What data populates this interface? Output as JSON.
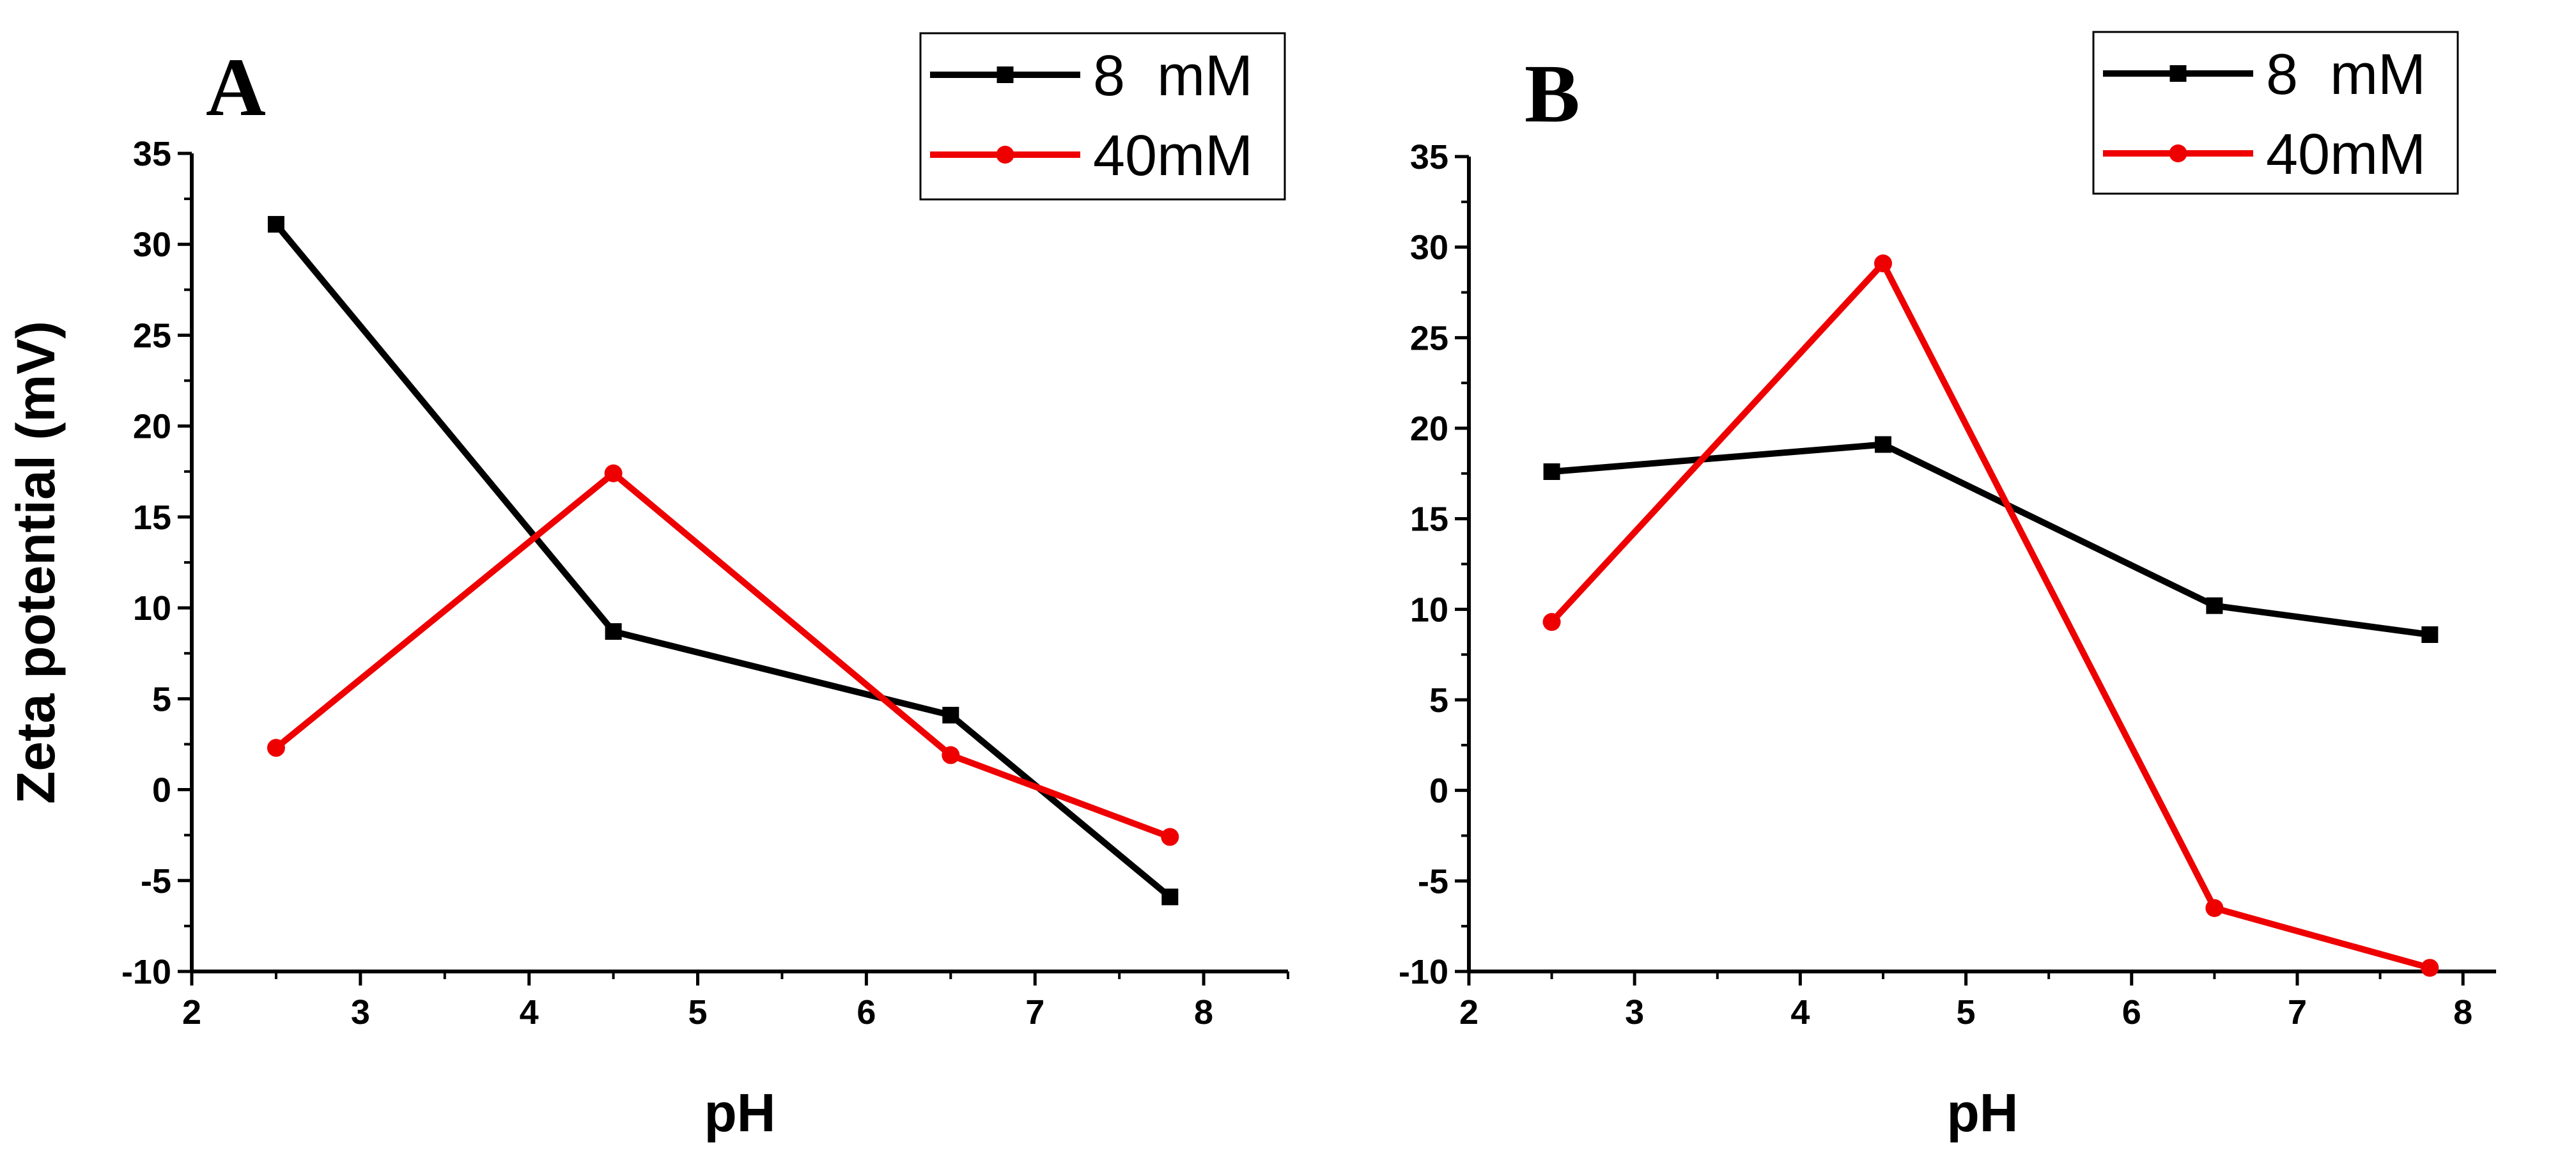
{
  "chart_data": [
    {
      "type": "line",
      "panel_label": "A",
      "xlabel": "pH",
      "ylabel": "Zeta potential (mV)",
      "xlim": [
        2,
        8.5
      ],
      "ylim": [
        -10,
        35
      ],
      "x_ticks": [
        "2",
        "3",
        "4",
        "5",
        "6",
        "7",
        "8"
      ],
      "y_ticks": [
        "35",
        "30",
        "25",
        "20",
        "15",
        "10",
        "5",
        "0",
        "-5",
        "-10"
      ],
      "legend_position": "top-right",
      "series": [
        {
          "name": "8  mM",
          "color": "#000000",
          "marker": "square",
          "x": [
            2.5,
            4.5,
            6.5,
            7.8
          ],
          "values": [
            31.1,
            8.7,
            4.1,
            -5.9
          ]
        },
        {
          "name": "40mM",
          "color": "#ee0000",
          "marker": "circle",
          "x": [
            2.5,
            4.5,
            6.5,
            7.8
          ],
          "values": [
            2.3,
            17.4,
            1.9,
            -2.6
          ]
        }
      ]
    },
    {
      "type": "line",
      "panel_label": "B",
      "xlabel": "pH",
      "ylabel": "",
      "xlim": [
        2,
        8.2
      ],
      "ylim": [
        -10,
        35
      ],
      "x_ticks": [
        "2",
        "3",
        "4",
        "5",
        "6",
        "7",
        "8"
      ],
      "y_ticks": [
        "35",
        "30",
        "25",
        "20",
        "15",
        "10",
        "5",
        "0",
        "-5",
        "-10"
      ],
      "legend_position": "top-right",
      "series": [
        {
          "name": "8  mM",
          "color": "#000000",
          "marker": "square",
          "x": [
            2.5,
            4.5,
            6.5,
            7.8
          ],
          "values": [
            17.6,
            19.1,
            10.2,
            8.6
          ]
        },
        {
          "name": "40mM",
          "color": "#ee0000",
          "marker": "circle",
          "x": [
            2.5,
            4.5,
            6.5,
            7.8
          ],
          "values": [
            9.3,
            29.1,
            -6.5,
            -9.8
          ]
        }
      ]
    }
  ]
}
